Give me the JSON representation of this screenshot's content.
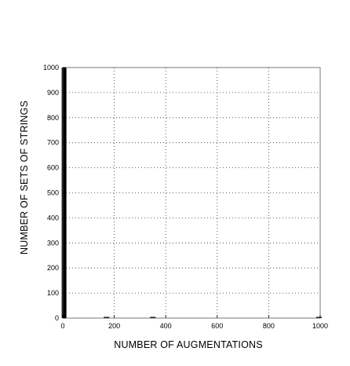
{
  "chart_data": {
    "type": "bar",
    "title": "",
    "xlabel": "NUMBER OF AUGMENTATIONS",
    "ylabel": "NUMBER OF SETS OF STRINGS",
    "xlim": [
      0,
      1000
    ],
    "ylim": [
      0,
      1000
    ],
    "xticks": [
      0,
      200,
      400,
      600,
      800,
      1000
    ],
    "yticks": [
      0,
      100,
      200,
      300,
      400,
      500,
      600,
      700,
      800,
      900,
      1000
    ],
    "grid": true,
    "grid_style": "dotted",
    "bars": [
      {
        "x": 5,
        "value": 1000
      },
      {
        "x": 170,
        "value": 2
      },
      {
        "x": 350,
        "value": 2
      },
      {
        "x": 995,
        "value": 2
      }
    ]
  }
}
